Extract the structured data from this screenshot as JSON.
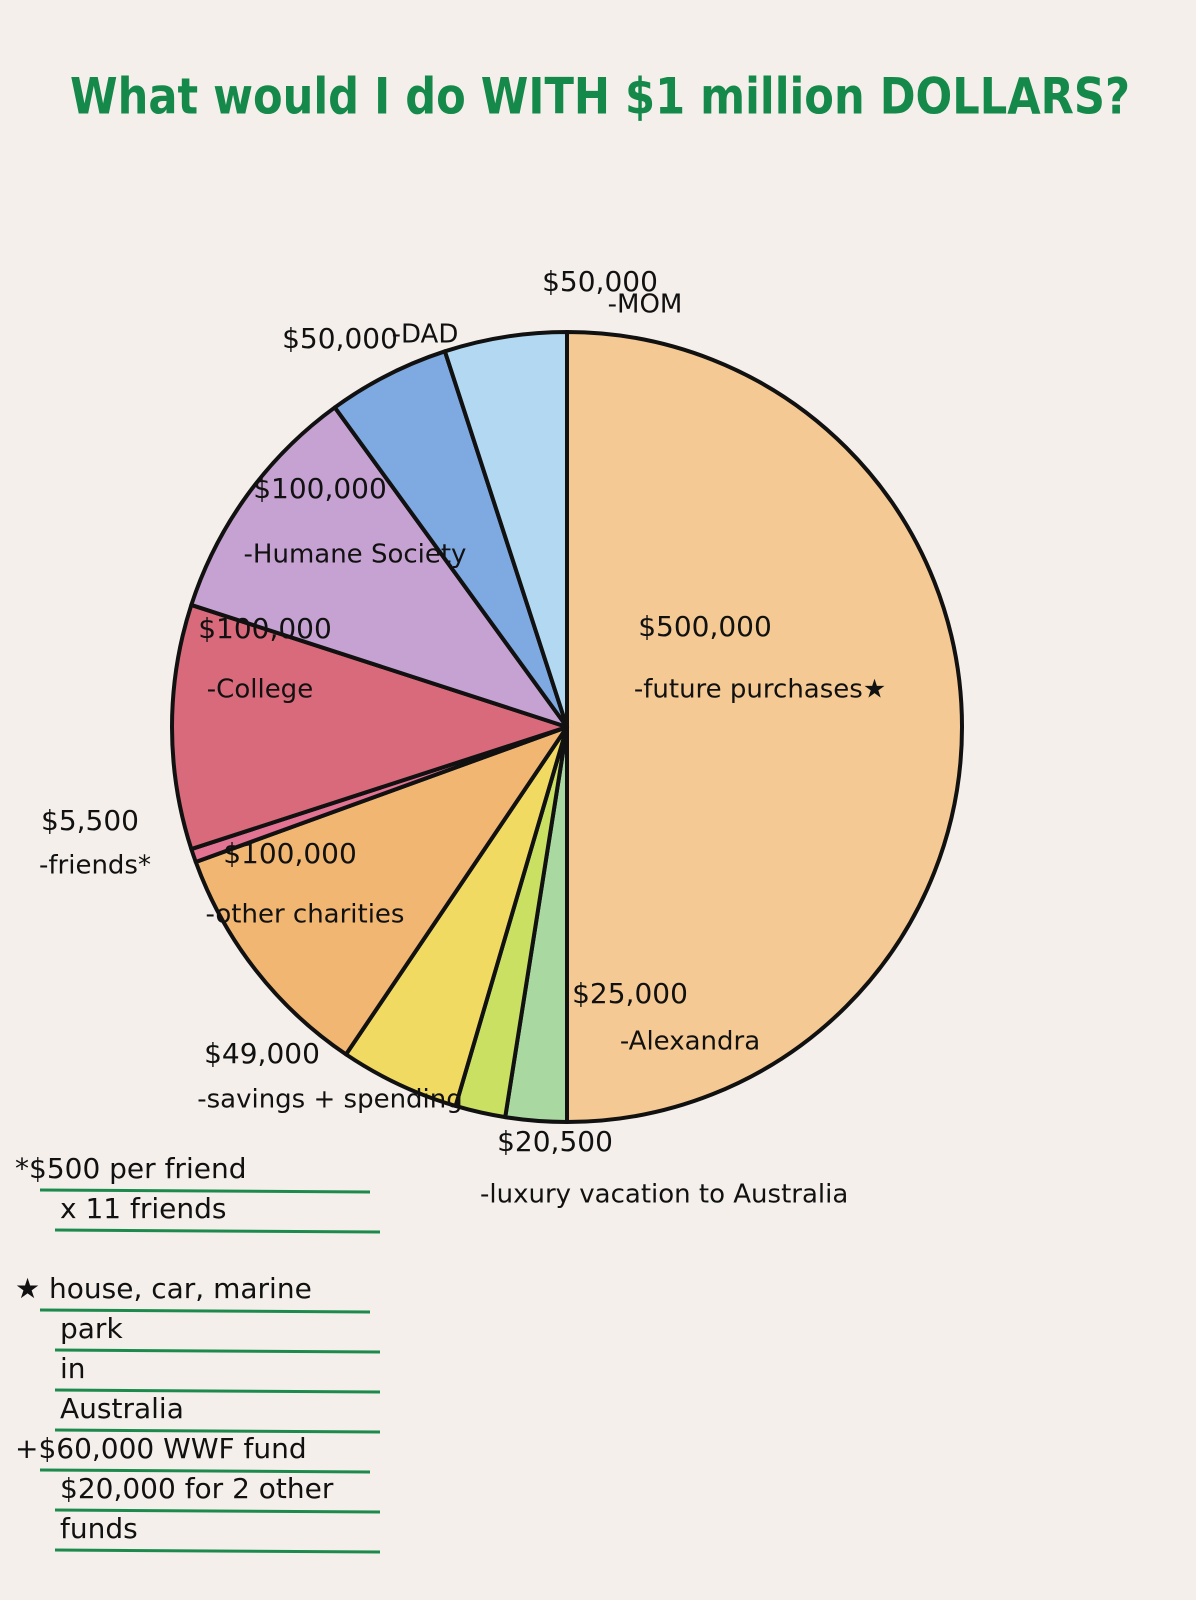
{
  "chart_data": {
    "type": "pie",
    "title": "What would I do WITH $1 million DOLLARS?",
    "categories": [
      "-future purchases★",
      "-Alexandra",
      "-luxury vacation to Australia",
      "-savings + spending",
      "-other charities",
      "-friends*",
      "-College",
      "-Humane Society",
      "-DAD",
      "-MOM"
    ],
    "values": [
      500000,
      25000,
      20500,
      49000,
      100000,
      5500,
      100000,
      100000,
      50000,
      50000
    ],
    "value_labels": [
      "$500,000",
      "$25,000",
      "$20,500",
      "$49,000",
      "$100,000",
      "$5,500",
      "$100,000",
      "$100,000",
      "$50,000",
      "$50,000"
    ],
    "colors": [
      "#f5c993",
      "#a9d9a0",
      "#c9e063",
      "#f1da62",
      "#f0b672",
      "#e27392",
      "#d96a7b",
      "#c6a2d2",
      "#7ea9e1",
      "#b2d9f1"
    ],
    "notes": [
      [
        "*$500 per friend",
        "x 11 friends"
      ],
      [
        "★ house, car, marine",
        "park",
        "in",
        "Australia"
      ],
      [
        "+$60,000 WWF fund",
        "$20,000 for 2 other",
        "funds"
      ]
    ]
  }
}
